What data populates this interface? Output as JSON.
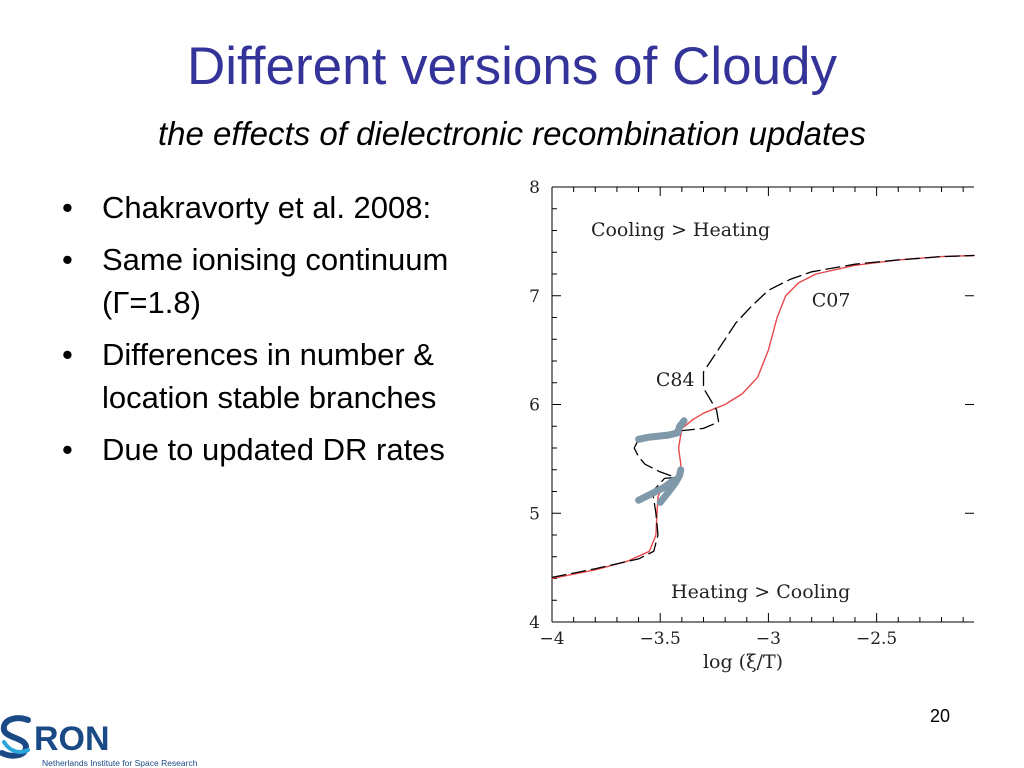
{
  "slide": {
    "title": "Different versions of Cloudy",
    "subtitle": "the effects of dielectronic recombination updates",
    "bullets": [
      "Chakravorty et al. 2008:",
      "Same ionising continuum (Γ=1.8)",
      "Differences in number & location stable branches",
      "Due to updated DR rates"
    ],
    "bullet_glyph": "•",
    "page_number": "20"
  },
  "logo": {
    "mark": "RON",
    "tagline": "Netherlands Institute for Space Research",
    "colors": {
      "primary": "#1a4a86",
      "accent": "#29a6dc"
    }
  },
  "chart_data": {
    "type": "line",
    "xlabel": "log (ξ/T)",
    "ylabel": "",
    "xlim": [
      -4,
      -2.05
    ],
    "ylim": [
      4,
      8
    ],
    "x_ticks": [
      -4,
      -3.5,
      -3,
      -2.5
    ],
    "x_tick_labels": [
      "−4",
      "−3.5",
      "−3",
      "−2.5"
    ],
    "y_ticks": [
      4,
      5,
      6,
      7,
      8
    ],
    "y_tick_labels": [
      "4",
      "5",
      "6",
      "7",
      "8"
    ],
    "annotations": [
      {
        "text": "Cooling > Heating",
        "x": -3.82,
        "y": 7.55
      },
      {
        "text": "Heating > Cooling",
        "x": -3.45,
        "y": 4.22
      },
      {
        "text": "C07",
        "x": -2.8,
        "y": 6.9
      },
      {
        "text": "C84",
        "x": -3.52,
        "y": 6.17
      }
    ],
    "series": [
      {
        "name": "C07",
        "style": "solid",
        "color": "#e8474a",
        "points": [
          [
            -4.0,
            4.4
          ],
          [
            -3.8,
            4.48
          ],
          [
            -3.65,
            4.56
          ],
          [
            -3.55,
            4.65
          ],
          [
            -3.52,
            4.8
          ],
          [
            -3.515,
            5.0
          ],
          [
            -3.51,
            5.15
          ],
          [
            -3.49,
            5.25
          ],
          [
            -3.45,
            5.3
          ],
          [
            -3.41,
            5.35
          ],
          [
            -3.405,
            5.45
          ],
          [
            -3.415,
            5.6
          ],
          [
            -3.4,
            5.78
          ],
          [
            -3.35,
            5.86
          ],
          [
            -3.3,
            5.92
          ],
          [
            -3.2,
            6.0
          ],
          [
            -3.12,
            6.1
          ],
          [
            -3.05,
            6.25
          ],
          [
            -3.0,
            6.5
          ],
          [
            -2.96,
            6.8
          ],
          [
            -2.92,
            7.0
          ],
          [
            -2.86,
            7.12
          ],
          [
            -2.78,
            7.2
          ],
          [
            -2.6,
            7.28
          ],
          [
            -2.4,
            7.33
          ],
          [
            -2.2,
            7.36
          ],
          [
            -2.05,
            7.37
          ]
        ]
      },
      {
        "name": "C84",
        "style": "dashed",
        "color": "#000000",
        "points": [
          [
            -4.0,
            4.41
          ],
          [
            -3.8,
            4.49
          ],
          [
            -3.6,
            4.58
          ],
          [
            -3.53,
            4.65
          ],
          [
            -3.51,
            4.8
          ],
          [
            -3.52,
            5.0
          ],
          [
            -3.535,
            5.2
          ],
          [
            -3.48,
            5.32
          ],
          [
            -3.43,
            5.33
          ],
          [
            -3.5,
            5.38
          ],
          [
            -3.57,
            5.45
          ],
          [
            -3.6,
            5.52
          ],
          [
            -3.62,
            5.6
          ],
          [
            -3.6,
            5.68
          ],
          [
            -3.5,
            5.73
          ],
          [
            -3.4,
            5.76
          ],
          [
            -3.3,
            5.78
          ],
          [
            -3.23,
            5.84
          ],
          [
            -3.24,
            5.95
          ],
          [
            -3.3,
            6.15
          ],
          [
            -3.3,
            6.3
          ],
          [
            -3.25,
            6.45
          ],
          [
            -3.2,
            6.6
          ],
          [
            -3.15,
            6.75
          ],
          [
            -3.08,
            6.9
          ],
          [
            -3.0,
            7.05
          ],
          [
            -2.9,
            7.15
          ],
          [
            -2.8,
            7.22
          ],
          [
            -2.6,
            7.29
          ],
          [
            -2.4,
            7.33
          ],
          [
            -2.2,
            7.36
          ],
          [
            -2.05,
            7.37
          ]
        ]
      }
    ],
    "stable_branch_segments": [
      {
        "color": "#7f99ab",
        "points": [
          [
            -3.5,
            5.1
          ],
          [
            -3.46,
            5.2
          ],
          [
            -3.43,
            5.28
          ],
          [
            -3.41,
            5.35
          ],
          [
            -3.405,
            5.4
          ]
        ]
      },
      {
        "color": "#7f99ab",
        "points": [
          [
            -3.6,
            5.12
          ],
          [
            -3.54,
            5.18
          ],
          [
            -3.48,
            5.24
          ],
          [
            -3.44,
            5.3
          ]
        ]
      },
      {
        "color": "#7f99ab",
        "points": [
          [
            -3.6,
            5.68
          ],
          [
            -3.55,
            5.7
          ],
          [
            -3.5,
            5.71
          ],
          [
            -3.46,
            5.72
          ],
          [
            -3.42,
            5.74
          ],
          [
            -3.41,
            5.8
          ],
          [
            -3.39,
            5.85
          ]
        ]
      }
    ]
  }
}
